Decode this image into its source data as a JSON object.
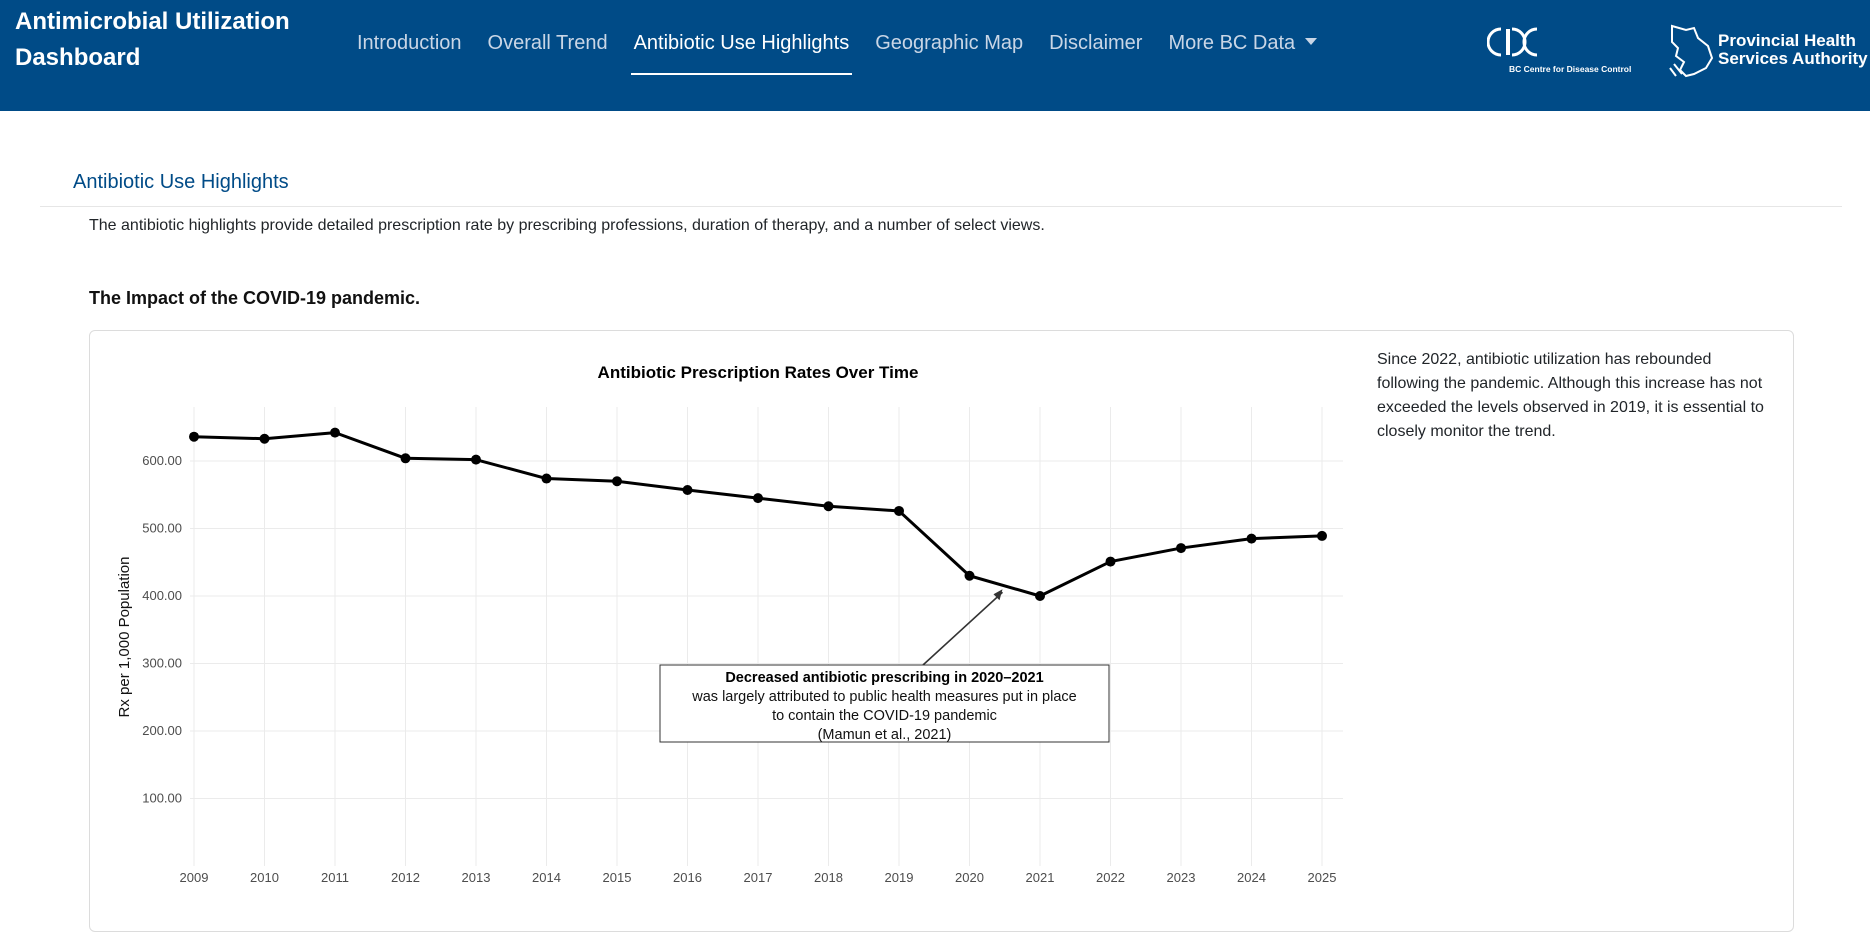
{
  "app": {
    "title": "Antimicrobial Utilization Dashboard",
    "nav": [
      {
        "label": "Introduction",
        "active": false
      },
      {
        "label": "Overall Trend",
        "active": false
      },
      {
        "label": "Antibiotic Use Highlights",
        "active": true
      },
      {
        "label": "Geographic Map",
        "active": false
      },
      {
        "label": "Disclaimer",
        "active": false
      },
      {
        "label": "More BC Data",
        "active": false,
        "dropdown": true
      }
    ],
    "logos": {
      "bccdc_text": "BC Centre for Disease Control",
      "phsa_line1": "Provincial Health",
      "phsa_line2": "Services Authority"
    }
  },
  "page": {
    "section_title": "Antibiotic Use Highlights",
    "intro": "The antibiotic highlights provide detailed prescription rate by prescribing professions, duration of therapy, and a number of select views.",
    "subheading": "The Impact of the COVID-19 pandemic.",
    "side_note": "Since 2022, antibiotic utilization has rebounded following the pandemic. Although this increase has not exceeded the levels observed in 2019, it is essential to closely monitor the trend."
  },
  "colors": {
    "brand": "#004b87",
    "line": "#000000",
    "grid": "#ebebeb"
  },
  "chart_data": {
    "type": "line",
    "title": "Antibiotic Prescription Rates Over Time",
    "xlabel": "",
    "ylabel": "Rx per 1,000 Population",
    "x": [
      "2009",
      "2010",
      "2011",
      "2012",
      "2013",
      "2014",
      "2015",
      "2016",
      "2017",
      "2018",
      "2019",
      "2020",
      "2021",
      "2022",
      "2023",
      "2024",
      "2025"
    ],
    "values": [
      636,
      633,
      642,
      604,
      602,
      574,
      570,
      557,
      545,
      533,
      526,
      430,
      400,
      451,
      471,
      485,
      489
    ],
    "yticks": [
      "100.00",
      "200.00",
      "300.00",
      "400.00",
      "500.00",
      "600.00"
    ],
    "ytick_values": [
      100,
      200,
      300,
      400,
      500,
      600
    ],
    "ylim": [
      0,
      680
    ],
    "grid": true,
    "annotation": {
      "bold": "Decreased antibiotic prescribing in 2020–2021",
      "lines": [
        "was largely attributed to public health measures put in place",
        "to contain the COVID-19 pandemic",
        "(Mamun et al., 2021)"
      ],
      "arrow_to_x": "2020",
      "arrow_to_y": 410
    }
  }
}
